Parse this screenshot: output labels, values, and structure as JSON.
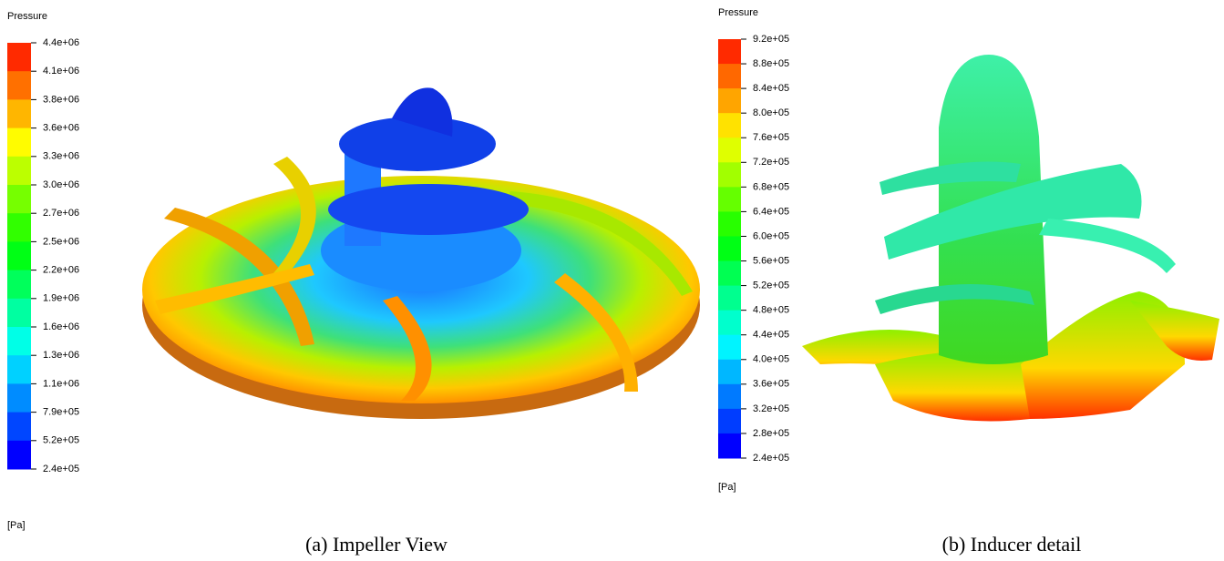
{
  "panels": [
    {
      "legend_title": "Pressure",
      "ticks": [
        "4.4e+06",
        "4.1e+06",
        "3.8e+06",
        "3.6e+06",
        "3.3e+06",
        "3.0e+06",
        "2.7e+06",
        "2.5e+06",
        "2.2e+06",
        "1.9e+06",
        "1.6e+06",
        "1.3e+06",
        "1.1e+06",
        "7.9e+05",
        "5.2e+05",
        "2.4e+05"
      ],
      "unit": "[Pa]",
      "caption": "(a) Impeller View"
    },
    {
      "legend_title": "Pressure",
      "ticks": [
        "9.2e+05",
        "8.8e+05",
        "8.4e+05",
        "8.0e+05",
        "7.6e+05",
        "7.2e+05",
        "6.8e+05",
        "6.4e+05",
        "6.0e+05",
        "5.6e+05",
        "5.2e+05",
        "4.8e+05",
        "4.4e+05",
        "4.0e+05",
        "3.6e+05",
        "3.2e+05",
        "2.8e+05",
        "2.4e+05"
      ],
      "unit": "[Pa]",
      "caption": "(b) Inducer detail"
    }
  ]
}
